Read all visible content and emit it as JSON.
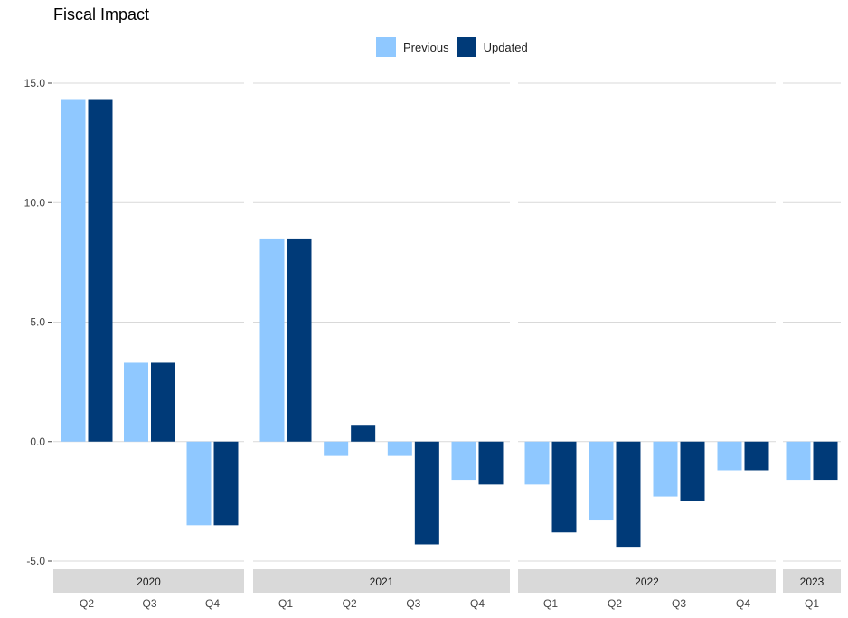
{
  "title": "Fiscal Impact",
  "legend": [
    {
      "name": "Previous",
      "color": "#8fc8ff"
    },
    {
      "name": "Updated",
      "color": "#003a78"
    }
  ],
  "chart_data": {
    "type": "bar",
    "title": "Fiscal Impact",
    "xlabel": "",
    "ylabel": "",
    "ylim": [
      -5.0,
      15.0
    ],
    "yticks": [
      "-5.0",
      "0.0",
      "5.0",
      "10.0",
      "15.0"
    ],
    "grid": true,
    "legend_position": "top",
    "facets": [
      {
        "label": "2020",
        "categories": [
          "Q2",
          "Q3",
          "Q4"
        ],
        "series": [
          {
            "name": "Previous",
            "values": [
              14.3,
              3.3,
              -3.5
            ]
          },
          {
            "name": "Updated",
            "values": [
              14.3,
              3.3,
              -3.5
            ]
          }
        ]
      },
      {
        "label": "2021",
        "categories": [
          "Q1",
          "Q2",
          "Q3",
          "Q4"
        ],
        "series": [
          {
            "name": "Previous",
            "values": [
              8.5,
              -0.6,
              -0.6,
              -1.6
            ]
          },
          {
            "name": "Updated",
            "values": [
              8.5,
              0.7,
              -4.3,
              -1.8
            ]
          }
        ]
      },
      {
        "label": "2022",
        "categories": [
          "Q1",
          "Q2",
          "Q3",
          "Q4"
        ],
        "series": [
          {
            "name": "Previous",
            "values": [
              -1.8,
              -3.3,
              -2.3,
              -1.2
            ]
          },
          {
            "name": "Updated",
            "values": [
              -3.8,
              -4.4,
              -2.5,
              -1.2
            ]
          }
        ]
      },
      {
        "label": "2023",
        "categories": [
          "Q1"
        ],
        "series": [
          {
            "name": "Previous",
            "values": [
              -1.6
            ]
          },
          {
            "name": "Updated",
            "values": [
              -1.6
            ]
          }
        ]
      }
    ]
  }
}
